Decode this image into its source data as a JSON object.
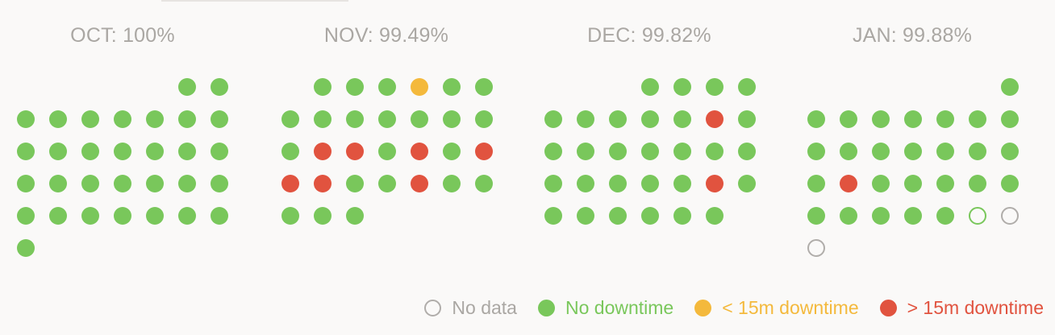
{
  "colors": {
    "no_downtime": "#79c75b",
    "minor_downtime": "#f4b93c",
    "major_downtime": "#e1533f",
    "no_data": "#b0adaa",
    "title_text": "#aaa7a3",
    "background": "#faf9f8"
  },
  "months": [
    {
      "label": "OCT: 100%",
      "start_weekday": 5,
      "days": [
        "ok",
        "ok",
        "ok",
        "ok",
        "ok",
        "ok",
        "ok",
        "ok",
        "ok",
        "ok",
        "ok",
        "ok",
        "ok",
        "ok",
        "ok",
        "ok",
        "ok",
        "ok",
        "ok",
        "ok",
        "ok",
        "ok",
        "ok",
        "ok",
        "ok",
        "ok",
        "ok",
        "ok",
        "ok",
        "ok",
        "ok"
      ]
    },
    {
      "label": "NOV: 99.49%",
      "start_weekday": 1,
      "days": [
        "ok",
        "ok",
        "ok",
        "minor",
        "ok",
        "ok",
        "ok",
        "ok",
        "ok",
        "ok",
        "ok",
        "ok",
        "ok",
        "ok",
        "major",
        "major",
        "ok",
        "major",
        "ok",
        "major",
        "major",
        "major",
        "ok",
        "ok",
        "major",
        "ok",
        "ok",
        "ok",
        "ok",
        "ok"
      ]
    },
    {
      "label": "DEC: 99.82%",
      "start_weekday": 3,
      "days": [
        "ok",
        "ok",
        "ok",
        "ok",
        "ok",
        "ok",
        "ok",
        "ok",
        "ok",
        "major",
        "ok",
        "ok",
        "ok",
        "ok",
        "ok",
        "ok",
        "ok",
        "ok",
        "ok",
        "ok",
        "ok",
        "ok",
        "ok",
        "major",
        "ok",
        "ok",
        "ok",
        "ok",
        "ok",
        "ok",
        "ok"
      ]
    },
    {
      "label": "JAN: 99.88%",
      "start_weekday": 6,
      "days": [
        "ok",
        "ok",
        "ok",
        "ok",
        "ok",
        "ok",
        "ok",
        "ok",
        "ok",
        "ok",
        "ok",
        "ok",
        "ok",
        "ok",
        "ok",
        "ok",
        "major",
        "ok",
        "ok",
        "ok",
        "ok",
        "ok",
        "ok",
        "ok",
        "ok",
        "ok",
        "ok",
        "today",
        "nodata",
        "nodata"
      ]
    }
  ],
  "legend": [
    {
      "key": "nodata",
      "label": "No data",
      "text_color": "#aaa7a3"
    },
    {
      "key": "ok",
      "label": "No downtime",
      "text_color": "#79c75b"
    },
    {
      "key": "minor",
      "label": "< 15m downtime",
      "text_color": "#f4b93c"
    },
    {
      "key": "major",
      "label": "> 15m downtime",
      "text_color": "#e1533f"
    }
  ]
}
